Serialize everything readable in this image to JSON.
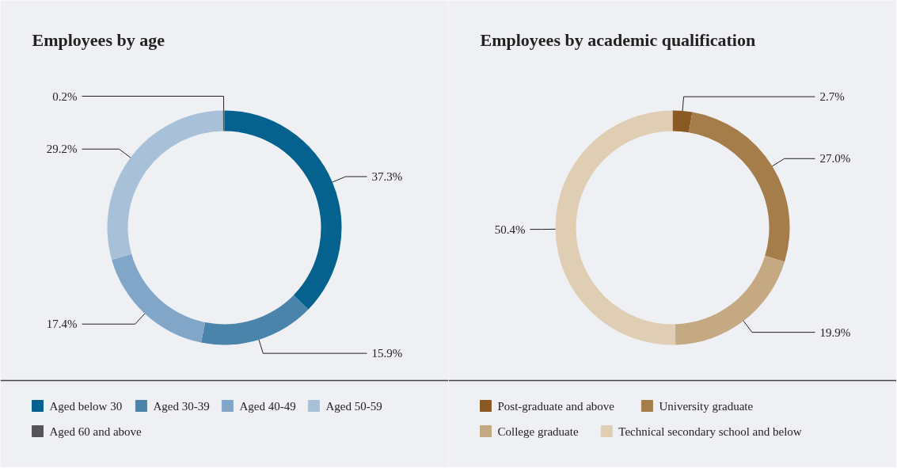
{
  "chart_data": [
    {
      "type": "donut",
      "title": "Employees by age",
      "categories": [
        "Aged below 30",
        "Aged 30-39",
        "Aged 40-49",
        "Aged 50-59",
        "Aged 60 and above"
      ],
      "values": [
        37.3,
        15.9,
        17.4,
        29.2,
        0.2
      ],
      "value_labels": [
        "37.3%",
        "15.9%",
        "17.4%",
        "29.2%",
        "0.2%"
      ],
      "colors": [
        "#05628e",
        "#4a84ab",
        "#82a6c7",
        "#a9c1d8",
        "#555555"
      ],
      "legend": "bottom"
    },
    {
      "type": "donut",
      "title": "Employees by academic qualification",
      "categories": [
        "Post-graduate and above",
        "University graduate",
        "College graduate",
        "Technical secondary school and below"
      ],
      "values": [
        2.7,
        27.0,
        19.9,
        50.4
      ],
      "value_labels": [
        "2.7%",
        "27.0%",
        "19.9%",
        "50.4%"
      ],
      "colors": [
        "#8b5a24",
        "#a47d4b",
        "#c4a983",
        "#dfcdb4"
      ],
      "legend": "bottom"
    }
  ]
}
